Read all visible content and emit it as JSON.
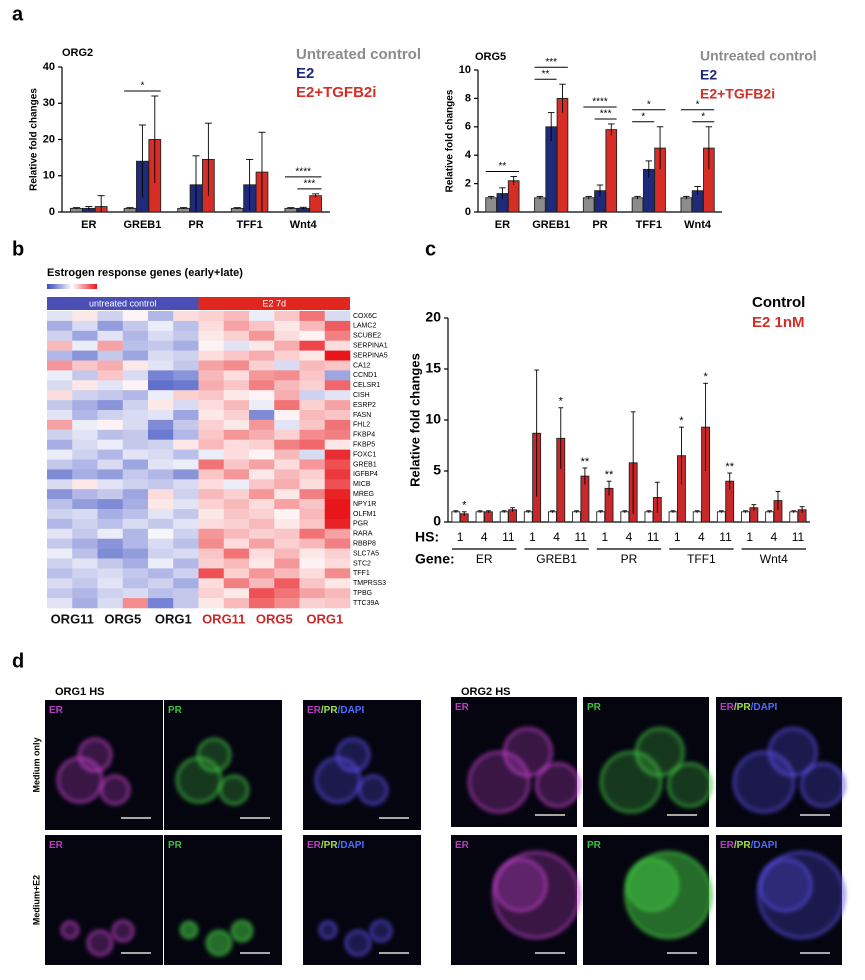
{
  "panel_labels": [
    "a",
    "b",
    "c",
    "d"
  ],
  "chart_data": [
    {
      "type": "bar",
      "title": "ORG2",
      "ylabel": "Relative fold changes",
      "categories": [
        "ER",
        "GREB1",
        "PR",
        "TFF1",
        "Wnt4"
      ],
      "series": [
        {
          "name": "Untreated control",
          "color": "#8c8c8c",
          "values": [
            1,
            1,
            1,
            1,
            1
          ],
          "errors": [
            0.2,
            0.2,
            0.2,
            0.2,
            0.2
          ]
        },
        {
          "name": "E2",
          "color": "#1f2a7a",
          "values": [
            1,
            14,
            7.5,
            7.5,
            1
          ],
          "errors": [
            0.5,
            10,
            8,
            7,
            0.3
          ]
        },
        {
          "name": "E2+TGFB2i",
          "color": "#d62e27",
          "values": [
            1.5,
            20,
            14.5,
            11,
            4.5
          ],
          "errors": [
            3,
            12,
            10,
            11,
            0.5
          ]
        }
      ],
      "ylim": [
        0,
        40
      ],
      "yticks": [
        0,
        10,
        20,
        30,
        40
      ],
      "annotations": [
        {
          "text": "*",
          "category": "GREB1",
          "series": [
            "Untreated control",
            "E2+TGFB2i"
          ]
        },
        {
          "text": "***",
          "category": "Wnt4",
          "series": [
            "E2",
            "E2+TGFB2i"
          ]
        },
        {
          "text": "****",
          "category": "Wnt4",
          "series": [
            "Untreated control",
            "E2+TGFB2i"
          ]
        }
      ]
    },
    {
      "type": "bar",
      "title": "ORG5",
      "ylabel": "Relative fold changes",
      "categories": [
        "ER",
        "GREB1",
        "PR",
        "TFF1",
        "Wnt4"
      ],
      "series": [
        {
          "name": "Untreated control",
          "color": "#8c8c8c",
          "values": [
            1,
            1,
            1,
            1,
            1
          ],
          "errors": [
            0.1,
            0.1,
            0.1,
            0.1,
            0.1
          ]
        },
        {
          "name": "E2",
          "color": "#1f2a7a",
          "values": [
            1.3,
            6,
            1.5,
            3,
            1.5
          ],
          "errors": [
            0.4,
            1,
            0.4,
            0.6,
            0.3
          ]
        },
        {
          "name": "E2+TGFB2i",
          "color": "#d62e27",
          "values": [
            2.2,
            8,
            5.8,
            4.5,
            4.5
          ],
          "errors": [
            0.3,
            1,
            0.4,
            1.5,
            1.5
          ]
        }
      ],
      "ylim": [
        0,
        10
      ],
      "yticks": [
        0,
        2,
        4,
        6,
        8,
        10
      ],
      "annotations": [
        {
          "text": "**",
          "category": "ER",
          "series": [
            "Untreated control",
            "E2+TGFB2i"
          ]
        },
        {
          "text": "**",
          "category": "GREB1",
          "series": [
            "Untreated control",
            "E2"
          ]
        },
        {
          "text": "***",
          "category": "GREB1",
          "series": [
            "Untreated control",
            "E2+TGFB2i"
          ]
        },
        {
          "text": "***",
          "category": "PR",
          "series": [
            "E2",
            "E2+TGFB2i"
          ]
        },
        {
          "text": "****",
          "category": "PR",
          "series": [
            "Untreated control",
            "E2+TGFB2i"
          ]
        },
        {
          "text": "*",
          "category": "TFF1",
          "series": [
            "Untreated control",
            "E2"
          ]
        },
        {
          "text": "*",
          "category": "TFF1",
          "series": [
            "Untreated control",
            "E2+TGFB2i"
          ]
        },
        {
          "text": "*",
          "category": "Wnt4",
          "series": [
            "E2",
            "E2+TGFB2i"
          ]
        },
        {
          "text": "*",
          "category": "Wnt4",
          "series": [
            "Untreated control",
            "E2+TGFB2i"
          ]
        }
      ]
    },
    {
      "type": "heatmap",
      "title": "Estrogen response genes (early+late)",
      "groups": [
        "untreated control",
        "E2 7d"
      ],
      "group_colors": [
        "#4b4fb5",
        "#e0261f"
      ],
      "column_labels": [
        "ORG11",
        "ORG5",
        "ORG1",
        "ORG11",
        "ORG5",
        "ORG1"
      ],
      "rows": [
        "COX6C",
        "LAMC2",
        "SCUBE2",
        "SERPINA1",
        "SERPINA5",
        "CA12",
        "CCND1",
        "CELSR1",
        "CISH",
        "ESRP2",
        "FASN",
        "FHL2",
        "FKBP4",
        "FKBP5",
        "FOXC1",
        "GREB1",
        "IGFBP4",
        "MICB",
        "MREG",
        "NPY1R",
        "OLFM1",
        "PGR",
        "RARA",
        "RBBP8",
        "SLC7A5",
        "STC2",
        "TFF1",
        "TMPRSS3",
        "TPBG",
        "TTC39A"
      ],
      "zlim": [
        -2,
        2
      ],
      "colors": [
        "#3b4cc0",
        "#ffffff",
        "#e8161b"
      ],
      "values": [
        [
          -0.3,
          0.2,
          -0.5,
          0.1,
          -0.8,
          0.3,
          0.4,
          0.6,
          -0.2,
          0.5,
          1.2,
          -0.4
        ],
        [
          -0.9,
          -0.4,
          -1.1,
          -0.6,
          -0.2,
          -0.7,
          0.3,
          0.8,
          0.5,
          0.2,
          0.6,
          1.4
        ],
        [
          -0.5,
          -1.0,
          -0.3,
          -0.8,
          -0.4,
          -0.6,
          0.2,
          0.4,
          0.9,
          0.3,
          0.1,
          1.1
        ],
        [
          0.6,
          -0.2,
          0.8,
          -0.7,
          -0.6,
          -0.9,
          0.1,
          -0.3,
          0.2,
          0.7,
          1.6,
          0.3
        ],
        [
          -0.8,
          -1.2,
          -0.6,
          -1.0,
          -0.4,
          -0.5,
          0.3,
          0.5,
          0.7,
          0.4,
          0.2,
          2.0
        ],
        [
          0.9,
          0.5,
          0.7,
          0.2,
          -0.3,
          -0.6,
          0.8,
          1.0,
          0.4,
          -0.4,
          0.6,
          0.5
        ],
        [
          -0.2,
          -0.6,
          0.5,
          -0.4,
          -1.4,
          -1.2,
          0.6,
          0.3,
          0.9,
          1.0,
          0.5,
          -1.0
        ],
        [
          -0.4,
          0.2,
          -0.3,
          0.1,
          -1.6,
          -1.5,
          0.7,
          0.5,
          1.1,
          0.6,
          0.4,
          1.3
        ],
        [
          0.3,
          -0.5,
          -0.6,
          -0.8,
          -0.2,
          0.4,
          0.5,
          0.2,
          0.1,
          0.7,
          -0.5,
          -0.3
        ],
        [
          -0.6,
          -0.9,
          -1.2,
          -0.5,
          0.2,
          -0.4,
          0.3,
          0.6,
          -0.2,
          1.2,
          0.4,
          0.8
        ],
        [
          -0.3,
          -0.8,
          -0.5,
          -0.4,
          -0.3,
          -1.0,
          0.2,
          0.4,
          -1.3,
          0.1,
          0.6,
          0.5
        ],
        [
          0.8,
          -0.2,
          0.1,
          -0.4,
          -1.3,
          -0.6,
          0.4,
          0.2,
          0.9,
          -0.3,
          0.5,
          1.2
        ],
        [
          -0.5,
          -0.3,
          -0.7,
          -0.6,
          -1.5,
          -0.8,
          0.5,
          0.9,
          0.7,
          0.4,
          1.0,
          1.1
        ],
        [
          -0.9,
          -0.4,
          -0.2,
          -0.6,
          -0.5,
          0.2,
          0.6,
          0.3,
          0.4,
          1.1,
          1.3,
          0.2
        ],
        [
          -0.2,
          -0.5,
          -0.8,
          -0.3,
          -0.4,
          -0.7,
          -0.2,
          0.3,
          0.1,
          0.6,
          -0.4,
          1.8
        ],
        [
          -0.6,
          -0.8,
          -0.4,
          -1.0,
          -0.3,
          -0.2,
          1.2,
          0.5,
          0.8,
          0.3,
          0.9,
          1.5
        ],
        [
          -1.3,
          -0.9,
          -1.1,
          -0.6,
          -0.8,
          -1.2,
          0.5,
          0.9,
          0.2,
          0.6,
          0.4,
          1.7
        ],
        [
          -0.4,
          0.2,
          -0.3,
          -0.5,
          -0.6,
          -0.4,
          0.3,
          -0.2,
          0.5,
          0.7,
          0.3,
          1.5
        ],
        [
          -1.2,
          -0.8,
          -0.6,
          -1.0,
          0.3,
          -0.5,
          0.6,
          0.4,
          0.9,
          0.2,
          1.1,
          1.9
        ],
        [
          -0.7,
          -1.1,
          -1.3,
          -0.9,
          0.2,
          -0.3,
          0.4,
          0.6,
          0.3,
          0.8,
          0.5,
          2.0
        ],
        [
          -0.5,
          -0.4,
          -0.9,
          -0.7,
          -0.3,
          -0.6,
          0.2,
          0.5,
          0.4,
          0.1,
          0.6,
          2.0
        ],
        [
          -0.8,
          -0.5,
          -0.7,
          -0.4,
          -0.6,
          -0.3,
          0.3,
          0.4,
          0.6,
          0.2,
          0.5,
          1.9
        ],
        [
          -0.3,
          -0.6,
          -0.2,
          -0.8,
          -0.1,
          -0.5,
          0.9,
          0.6,
          0.4,
          0.5,
          1.2,
          0.8
        ],
        [
          -0.6,
          -0.9,
          -1.2,
          -0.8,
          -0.4,
          -0.7,
          1.0,
          0.3,
          0.8,
          0.4,
          0.6,
          1.1
        ],
        [
          -0.2,
          -0.7,
          -1.3,
          -1.1,
          -0.5,
          -0.4,
          0.5,
          1.2,
          0.3,
          0.6,
          0.2,
          0.4
        ],
        [
          -0.5,
          -0.3,
          -0.6,
          -0.9,
          -0.2,
          -0.8,
          0.4,
          0.6,
          0.2,
          0.9,
          0.1,
          0.3
        ],
        [
          -0.7,
          -0.5,
          -0.4,
          -0.6,
          -0.8,
          -0.5,
          1.5,
          0.4,
          0.9,
          0.6,
          0.3,
          1.0
        ],
        [
          -0.4,
          -0.6,
          -0.3,
          -0.7,
          -0.5,
          -0.9,
          0.3,
          1.1,
          0.6,
          1.4,
          0.5,
          0.2
        ],
        [
          -0.6,
          -0.8,
          -0.5,
          -0.4,
          -0.7,
          -0.6,
          0.4,
          0.2,
          1.5,
          1.2,
          0.8,
          0.6
        ],
        [
          -0.3,
          -0.9,
          -0.4,
          1.0,
          -1.4,
          -0.6,
          0.2,
          0.6,
          1.3,
          1.0,
          0.4,
          0.5
        ]
      ]
    },
    {
      "type": "bar",
      "ylabel": "Relative fold changes",
      "category_label": "HS:",
      "group_label": "Gene:",
      "categories": [
        "1",
        "4",
        "11",
        "1",
        "4",
        "11",
        "1",
        "4",
        "11",
        "1",
        "4",
        "11",
        "1",
        "4",
        "11"
      ],
      "groups": [
        "ER",
        "GREB1",
        "PR",
        "TFF1",
        "Wnt4"
      ],
      "series": [
        {
          "name": "Control",
          "color": "#ffffff",
          "legend_color": "#000000",
          "values": [
            1,
            1,
            1,
            1,
            1,
            1,
            1,
            1,
            1,
            1,
            1,
            1,
            1,
            1,
            1
          ],
          "errors": [
            0.1,
            0.1,
            0.1,
            0.1,
            0.1,
            0.1,
            0.1,
            0.1,
            0.1,
            0.1,
            0.1,
            0.1,
            0.1,
            0.1,
            0.1
          ],
          "annotations": [
            null,
            null,
            null,
            null,
            null,
            null,
            null,
            null,
            null,
            null,
            null,
            null,
            null,
            null,
            null
          ]
        },
        {
          "name": "E2 1nM",
          "color": "#c8282a",
          "legend_color": "#d62e27",
          "values": [
            0.8,
            1.0,
            1.2,
            8.7,
            8.2,
            4.5,
            3.3,
            5.8,
            2.4,
            6.5,
            9.3,
            4.0,
            1.4,
            2.1,
            1.2
          ],
          "errors": [
            0.2,
            0.1,
            0.2,
            6.2,
            3,
            0.8,
            0.7,
            5,
            1.5,
            2.8,
            4.3,
            0.8,
            0.3,
            0.9,
            0.3
          ],
          "annotations": [
            "*",
            null,
            null,
            null,
            "*",
            "**",
            "**",
            null,
            null,
            "*",
            "*",
            "**",
            null,
            null,
            null
          ]
        }
      ],
      "ylim": [
        0,
        20
      ],
      "yticks": [
        0,
        5,
        10,
        15,
        20
      ]
    }
  ],
  "panel_d": {
    "organoids": [
      "ORG1 HS",
      "ORG2 HS"
    ],
    "conditions": [
      "Medium only",
      "Medium+E2"
    ],
    "channels": [
      [
        "ER"
      ],
      [
        "PR"
      ],
      [
        "ER",
        "/PR",
        "/DAPI"
      ]
    ]
  }
}
